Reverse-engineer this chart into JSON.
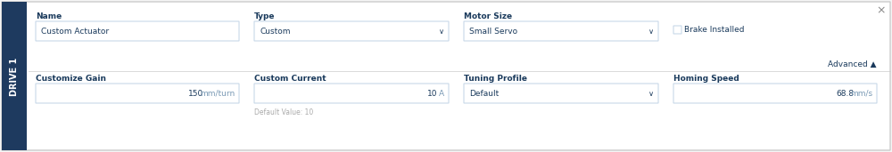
{
  "bg_color": "#f5f5f5",
  "panel_bg": "#ffffff",
  "sidebar_color": "#1e3a5f",
  "sidebar_text": "DRIVE 1",
  "sidebar_text_color": "#ffffff",
  "border_color": "#cccccc",
  "label_color": "#1a3a5c",
  "value_color": "#1a3a5c",
  "unit_color": "#7a9ab5",
  "hint_color": "#aaaaaa",
  "input_bg": "#ffffff",
  "input_border": "#c8d8e8",
  "close_x_color": "#888888",
  "row1_labels": [
    "Name",
    "Type",
    "Motor Size"
  ],
  "row1_values": [
    "Custom Actuator",
    "Custom",
    "Small Servo"
  ],
  "row1_has_dropdown": [
    false,
    true,
    true
  ],
  "brake_label": "Brake Installed",
  "row2_labels": [
    "Customize Gain",
    "Custom Current",
    "Tuning Profile",
    "Homing Speed"
  ],
  "row2_values": [
    "150  mm/turn",
    "10  A",
    "Default",
    "68.8  mm/s"
  ],
  "row2_has_dropdown": [
    false,
    false,
    true,
    false
  ],
  "advanced_label": "Advanced",
  "default_hint": "Default Value: 10",
  "figsize": [
    10.0,
    1.71
  ],
  "dpi": 100
}
